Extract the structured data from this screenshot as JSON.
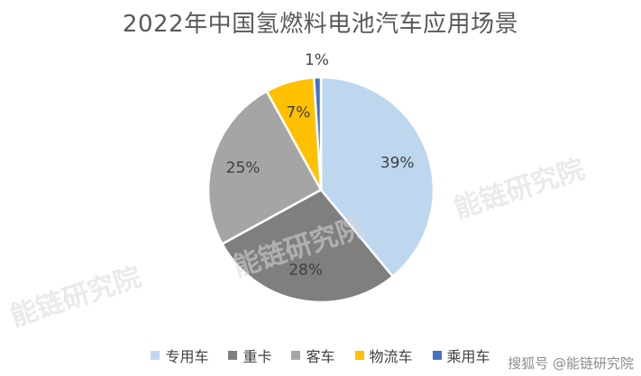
{
  "chart_data": {
    "type": "pie",
    "title": "2022年中国氢燃料电池汽车应用场景",
    "categories": [
      "专用车",
      "重卡",
      "客车",
      "物流车",
      "乘用车"
    ],
    "values": [
      39,
      28,
      25,
      7,
      1
    ],
    "labels": [
      "39%",
      "28%",
      "25%",
      "7%",
      "1%"
    ],
    "colors": [
      "#BDD7EE",
      "#7F7F7F",
      "#A5A5A5",
      "#FFC000",
      "#4472C4"
    ],
    "legend_position": "bottom"
  },
  "watermark": {
    "text": "能链研究院"
  },
  "footer": {
    "text": "搜狐号 @能链研究院"
  }
}
